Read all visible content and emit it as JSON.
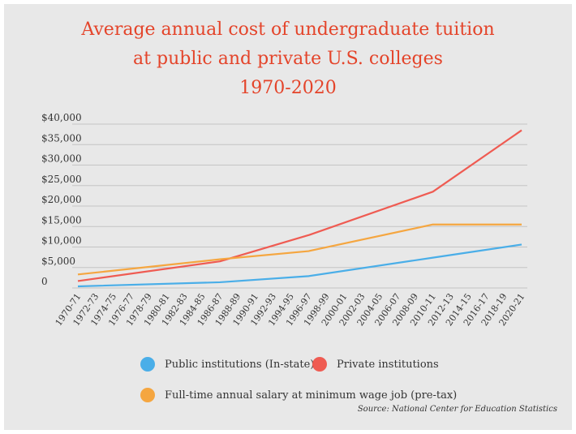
{
  "title_lines": [
    "Average annual cost of undergraduate tuition",
    "at public and private U.S. colleges",
    "1970-2020"
  ],
  "source": "Source: National Center for Education Statistics",
  "colors": {
    "title": "#e4442a",
    "public": "#4aaee8",
    "private": "#ef5b52",
    "wage": "#f5a640",
    "grid": "#c4c4c4"
  },
  "chart_data": {
    "type": "line",
    "title": "Average annual cost of undergraduate tuition at public and private U.S. colleges 1970-2020",
    "categories": [
      "1970-71",
      "1972-73",
      "1974-75",
      "1976-77",
      "1978-79",
      "1980-81",
      "1982-83",
      "1984-85",
      "1986-87",
      "1988-89",
      "1990-91",
      "1992-93",
      "1994-95",
      "1996-97",
      "1998-99",
      "2000-01",
      "2002-03",
      "2004-05",
      "2006-07",
      "2008-09",
      "2010-11",
      "2012-13",
      "2014-15",
      "2016-17",
      "2018-19",
      "2020-21"
    ],
    "y_ticks": [
      {
        "value": 0,
        "label": "0"
      },
      {
        "value": 5000,
        "label": "$5,000"
      },
      {
        "value": 10000,
        "label": "$10,000"
      },
      {
        "value": 15000,
        "label": "$15,000"
      },
      {
        "value": 20000,
        "label": "$20,000"
      },
      {
        "value": 25000,
        "label": "$25,000"
      },
      {
        "value": 30000,
        "label": "$30,000"
      },
      {
        "value": 35000,
        "label": "$35,000"
      },
      {
        "value": 40000,
        "label": "$40,000"
      }
    ],
    "ylim": [
      0,
      40000
    ],
    "grid": true,
    "legend_position": "bottom",
    "series": [
      {
        "name": "Public institutions (In-state)",
        "color_key": "public",
        "points": [
          {
            "x": "1970-71",
            "y": 400
          },
          {
            "x": "1986-87",
            "y": 1400
          },
          {
            "x": "1996-97",
            "y": 2900
          },
          {
            "x": "2010-11",
            "y": 7400
          },
          {
            "x": "2020-21",
            "y": 10600
          }
        ]
      },
      {
        "name": "Private institutions",
        "color_key": "private",
        "points": [
          {
            "x": "1970-71",
            "y": 1700
          },
          {
            "x": "1986-87",
            "y": 6500
          },
          {
            "x": "1996-97",
            "y": 12900
          },
          {
            "x": "2010-11",
            "y": 23500
          },
          {
            "x": "2020-21",
            "y": 38500
          }
        ]
      },
      {
        "name": "Full-time annual salary at minimum wage job (pre-tax)",
        "color_key": "wage",
        "points": [
          {
            "x": "1970-71",
            "y": 3300
          },
          {
            "x": "1986-87",
            "y": 7000
          },
          {
            "x": "1996-97",
            "y": 9000
          },
          {
            "x": "2010-11",
            "y": 15500
          },
          {
            "x": "2020-21",
            "y": 15500
          }
        ]
      }
    ]
  }
}
